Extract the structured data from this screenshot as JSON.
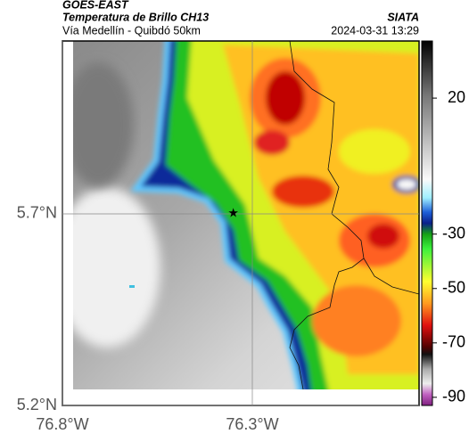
{
  "header": {
    "satellite": "GOES-EAST",
    "title": "Temperatura de Brillo CH13",
    "subtitle": "Vía Medellín - Quibdó 50km",
    "source": "SIATA",
    "datetime": "2024-03-31 13:29"
  },
  "map": {
    "xlim": [
      -76.8,
      -75.861
    ],
    "ylim": [
      5.2,
      6.151
    ],
    "xticks": [
      {
        "value": -76.8,
        "label": "76.8°W"
      },
      {
        "value": -76.3,
        "label": "76.3°W"
      }
    ],
    "yticks": [
      {
        "value": 5.2,
        "label": "5.2°N"
      },
      {
        "value": 5.7,
        "label": "5.7°N"
      }
    ],
    "grid": true,
    "marker": {
      "lon": -76.35,
      "lat": 5.7
    }
  },
  "colorbar": {
    "lim": [
      41,
      -93
    ],
    "ticks": [
      20,
      -30,
      -50,
      -70,
      -90
    ]
  }
}
